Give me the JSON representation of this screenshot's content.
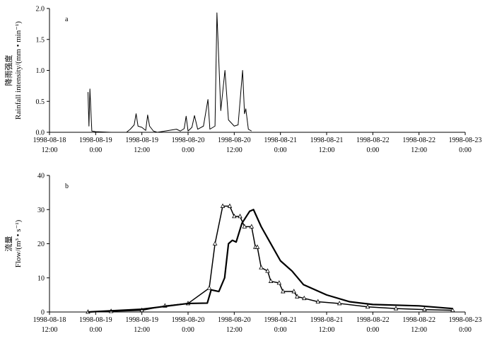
{
  "chart_data": [
    {
      "type": "line",
      "annotation": "a",
      "ylabel": [
        "降雨强度",
        "Rainfall intensity/(mm • min⁻¹)"
      ],
      "xlim": [
        "1998-08-18T12:00",
        "1998-08-23T00:00"
      ],
      "xticks": [
        {
          "value": "1998-08-18T12:00",
          "label": "1998-08-18 12:00"
        },
        {
          "value": "1998-08-19T00:00",
          "label": "1998-08-19 0:00"
        },
        {
          "value": "1998-08-19T12:00",
          "label": "1998-08-19 12:00"
        },
        {
          "value": "1998-08-20T00:00",
          "label": "1998-08-20 0:00"
        },
        {
          "value": "1998-08-20T12:00",
          "label": "1998-08-20 12:00"
        },
        {
          "value": "1998-08-21T00:00",
          "label": "1998-08-21 0:00"
        },
        {
          "value": "1998-08-21T12:00",
          "label": "1998-08-21 12:00"
        },
        {
          "value": "1998-08-22T00:00",
          "label": "1998-08-22 0:00"
        },
        {
          "value": "1998-08-22T12:00",
          "label": "1998-08-22 12:00"
        },
        {
          "value": "1998-08-23T00:00",
          "label": "1998-08-23 0:00"
        }
      ],
      "ylim": [
        0,
        2
      ],
      "yticks": [
        {
          "value": 0,
          "label": "0.0"
        },
        0.5,
        {
          "value": 1,
          "label": "1.0"
        },
        1.5,
        {
          "value": 2,
          "label": "2.0"
        }
      ],
      "series": [
        {
          "color": "#000000",
          "width": 1,
          "x": [
            "1998-08-18T22:00",
            "1998-08-18T22:15",
            "1998-08-18T22:30",
            "1998-08-18T23:00",
            "1998-08-19T00:00",
            "1998-08-19T04:00",
            "1998-08-19T08:00",
            "1998-08-19T09:00",
            "1998-08-19T10:00",
            "1998-08-19T10:30",
            "1998-08-19T11:00",
            "1998-08-19T12:00",
            "1998-08-19T13:00",
            "1998-08-19T13:30",
            "1998-08-19T14:00",
            "1998-08-19T15:00",
            "1998-08-19T16:00",
            "1998-08-19T21:00",
            "1998-08-19T22:00",
            "1998-08-19T23:00",
            "1998-08-19T23:30",
            "1998-08-20T00:00",
            "1998-08-20T01:00",
            "1998-08-20T01:40",
            "1998-08-20T02:30",
            "1998-08-20T04:00",
            "1998-08-20T05:10",
            "1998-08-20T05:40",
            "1998-08-20T07:00",
            "1998-08-20T07:30",
            "1998-08-20T08:30",
            "1998-08-20T09:35",
            "1998-08-20T10:30",
            "1998-08-20T12:00",
            "1998-08-20T13:00",
            "1998-08-20T14:10",
            "1998-08-20T14:40",
            "1998-08-20T15:00",
            "1998-08-20T15:40",
            "1998-08-20T16:30"
          ],
          "values": [
            0.65,
            0.1,
            0.7,
            0.02,
            0.01,
            0.0,
            0.0,
            0.05,
            0.12,
            0.3,
            0.1,
            0.08,
            0.03,
            0.28,
            0.1,
            0.02,
            0.0,
            0.05,
            0.02,
            0.06,
            0.26,
            0.02,
            0.08,
            0.27,
            0.05,
            0.1,
            0.53,
            0.05,
            0.1,
            1.93,
            0.35,
            1.0,
            0.2,
            0.1,
            0.12,
            1.0,
            0.3,
            0.38,
            0.05,
            0.02
          ]
        }
      ]
    },
    {
      "type": "line",
      "annotation": "b",
      "ylabel": [
        "流量",
        "Flow/(m³ • s⁻¹)"
      ],
      "xlim": [
        "1998-08-18T12:00",
        "1998-08-23T00:00"
      ],
      "xticks": [
        {
          "value": "1998-08-18T12:00",
          "label": "1998-08-18 12:00"
        },
        {
          "value": "1998-08-19T00:00",
          "label": "1998-08-19 0:00"
        },
        {
          "value": "1998-08-19T12:00",
          "label": "1998-08-19 12:00"
        },
        {
          "value": "1998-08-20T00:00",
          "label": "1998-08-20 0:00"
        },
        {
          "value": "1998-08-20T12:00",
          "label": "1998-08-20 12:00"
        },
        {
          "value": "1998-08-21T00:00",
          "label": "1998-08-21 0:00"
        },
        {
          "value": "1998-08-21T12:00",
          "label": "1998-08-21 12:00"
        },
        {
          "value": "1998-08-22T00:00",
          "label": "1998-08-22 0:00"
        },
        {
          "value": "1998-08-22T12:00",
          "label": "1998-08-22 12:00"
        },
        {
          "value": "1998-08-23T00:00",
          "label": "1998-08-23 0:00"
        }
      ],
      "ylim": [
        0,
        40
      ],
      "yticks": [
        0,
        10,
        20,
        30,
        40
      ],
      "series": [
        {
          "color": "#000000",
          "width": 1.5,
          "marker": "triangle",
          "x": [
            "1998-08-18T22:00",
            "1998-08-19T04:00",
            "1998-08-19T12:00",
            "1998-08-19T18:00",
            "1998-08-20T00:00",
            "1998-08-20T05:30",
            "1998-08-20T07:00",
            "1998-08-20T09:00",
            "1998-08-20T10:50",
            "1998-08-20T12:00",
            "1998-08-20T13:30",
            "1998-08-20T14:40",
            "1998-08-20T16:30",
            "1998-08-20T17:30",
            "1998-08-20T18:00",
            "1998-08-20T19:00",
            "1998-08-20T20:40",
            "1998-08-20T21:30",
            "1998-08-20T23:40",
            "1998-08-21T00:40",
            "1998-08-21T03:30",
            "1998-08-21T04:20",
            "1998-08-21T06:10",
            "1998-08-21T09:45",
            "1998-08-21T15:20",
            "1998-08-21T22:40",
            "1998-08-22T06:00",
            "1998-08-22T13:25",
            "1998-08-22T20:45"
          ],
          "values": [
            0,
            0.2,
            0.5,
            1.8,
            2.5,
            7,
            20,
            31,
            31,
            28,
            28,
            25,
            25,
            19,
            19,
            13,
            12,
            9,
            8.5,
            6,
            6,
            4.5,
            4,
            3,
            2.5,
            1.5,
            1,
            0.7,
            0.5
          ]
        },
        {
          "color": "#000000",
          "width": 2.2,
          "x": [
            "1998-08-18T22:00",
            "1998-08-19T12:00",
            "1998-08-20T00:00",
            "1998-08-20T05:00",
            "1998-08-20T06:00",
            "1998-08-20T08:00",
            "1998-08-20T09:30",
            "1998-08-20T10:30",
            "1998-08-20T11:30",
            "1998-08-20T12:30",
            "1998-08-20T14:00",
            "1998-08-20T16:00",
            "1998-08-20T17:00",
            "1998-08-20T19:00",
            "1998-08-20T21:00",
            "1998-08-21T00:00",
            "1998-08-21T03:00",
            "1998-08-21T06:00",
            "1998-08-21T12:00",
            "1998-08-21T18:00",
            "1998-08-22T00:00",
            "1998-08-22T12:00",
            "1998-08-22T20:45"
          ],
          "values": [
            0,
            0.8,
            2.5,
            2.6,
            6.5,
            6,
            10,
            20,
            21,
            20.5,
            26,
            29.5,
            30,
            25,
            21,
            15,
            12,
            8,
            5,
            3,
            2.2,
            1.8,
            1
          ]
        }
      ]
    }
  ]
}
